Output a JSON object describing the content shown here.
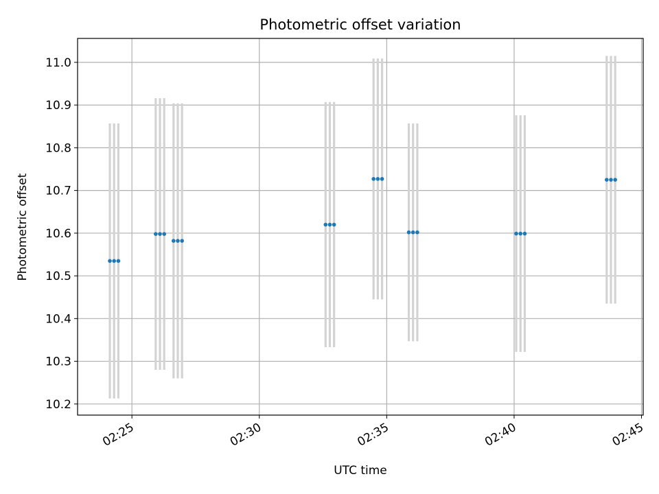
{
  "chart_data": {
    "type": "scatter",
    "title": "Photometric offset variation",
    "xlabel": "UTC time",
    "ylabel": "Photometric offset",
    "xlim": [
      "02:22:52",
      "02:45:04"
    ],
    "ylim": [
      10.174,
      11.056
    ],
    "x_ticks": [
      "02:25",
      "02:30",
      "02:35",
      "02:40",
      "02:45"
    ],
    "y_ticks": [
      "10.2",
      "10.3",
      "10.4",
      "10.5",
      "10.6",
      "10.7",
      "10.8",
      "10.9",
      "11.0"
    ],
    "grid": true,
    "colors": {
      "points": "#1f77b4",
      "errorbars": "#d3d3d3",
      "grid": "#b0b0b0"
    },
    "groups": [
      {
        "times": [
          "02:24:08",
          "02:24:18",
          "02:24:28"
        ],
        "y": 10.535,
        "err": 0.322
      },
      {
        "times": [
          "02:25:56",
          "02:26:06",
          "02:26:16"
        ],
        "y": 10.598,
        "err": 0.318
      },
      {
        "times": [
          "02:26:38",
          "02:26:48",
          "02:26:58"
        ],
        "y": 10.582,
        "err": 0.322
      },
      {
        "times": [
          "02:32:36",
          "02:32:46",
          "02:32:56"
        ],
        "y": 10.62,
        "err": 0.287
      },
      {
        "times": [
          "02:34:29",
          "02:34:39",
          "02:34:49"
        ],
        "y": 10.727,
        "err": 0.282
      },
      {
        "times": [
          "02:35:52",
          "02:36:02",
          "02:36:12"
        ],
        "y": 10.602,
        "err": 0.255
      },
      {
        "times": [
          "02:40:05",
          "02:40:15",
          "02:40:25"
        ],
        "y": 10.599,
        "err": 0.277
      },
      {
        "times": [
          "02:43:38",
          "02:43:48",
          "02:43:58"
        ],
        "y": 10.725,
        "err": 0.29
      }
    ]
  }
}
